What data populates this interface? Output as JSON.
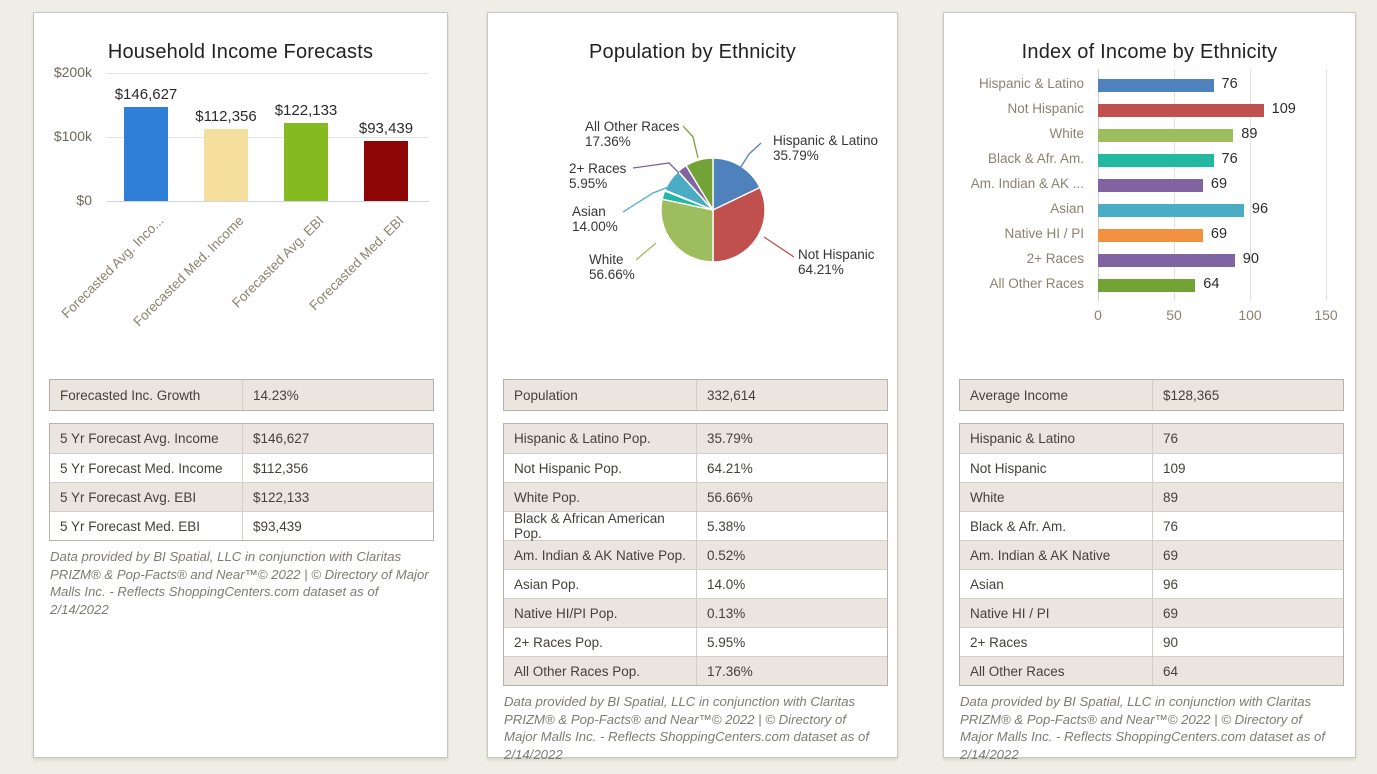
{
  "footnote": "Data provided by BI Spatial, LLC in conjunction with Claritas PRIZM® & Pop-Facts® and Near™© 2022 | © Directory of Major Malls Inc. - Reflects ShoppingCenters.com dataset as of 2/14/2022",
  "colors": {
    "page_bg": "#f0ede6",
    "panel_bg": "#ffffff",
    "table_shade": "#eae6df",
    "axis_label": "#8b8270",
    "value_label": "#2b2b2b"
  },
  "panels": [
    {
      "title": "Household Income Forecasts",
      "summary_rows": [
        [
          "Forecasted Inc. Growth",
          "14.23%"
        ]
      ],
      "detail_rows": [
        [
          "5 Yr Forecast Avg. Income",
          "$146,627"
        ],
        [
          "5 Yr Forecast Med. Income",
          "$112,356"
        ],
        [
          "5 Yr Forecast Avg. EBI",
          "$122,133"
        ],
        [
          "5 Yr Forecast Med. EBI",
          "$93,439"
        ]
      ]
    },
    {
      "title": "Population by Ethnicity",
      "summary_rows": [
        [
          "Population",
          "332,614"
        ]
      ],
      "detail_rows": [
        [
          "Hispanic & Latino Pop.",
          "35.79%"
        ],
        [
          "Not Hispanic Pop.",
          "64.21%"
        ],
        [
          "White Pop.",
          "56.66%"
        ],
        [
          "Black & African American Pop.",
          "5.38%"
        ],
        [
          "Am. Indian & AK Native Pop.",
          "0.52%"
        ],
        [
          "Asian Pop.",
          "14.0%"
        ],
        [
          "Native HI/PI Pop.",
          "0.13%"
        ],
        [
          "2+ Races Pop.",
          "5.95%"
        ],
        [
          "All Other Races Pop.",
          "17.36%"
        ]
      ]
    },
    {
      "title": "Index of Income by Ethnicity",
      "summary_rows": [
        [
          "Average Income",
          "$128,365"
        ]
      ],
      "detail_rows": [
        [
          "Hispanic & Latino",
          "76"
        ],
        [
          "Not Hispanic",
          "109"
        ],
        [
          "White",
          "89"
        ],
        [
          "Black & Afr. Am.",
          "76"
        ],
        [
          "Am. Indian & AK Native",
          "69"
        ],
        [
          "Asian",
          "96"
        ],
        [
          "Native HI / PI",
          "69"
        ],
        [
          "2+ Races",
          "90"
        ],
        [
          "All Other Races",
          "64"
        ]
      ]
    }
  ],
  "chart_data": [
    {
      "type": "bar",
      "title": "Household Income Forecasts",
      "categories": [
        "Forecasted Avg. Inco...",
        "Forecasted Med. Income",
        "Forecasted Avg. EBI",
        "Forecasted Med. EBI"
      ],
      "values": [
        146627,
        112356,
        122133,
        93439
      ],
      "value_labels": [
        "$146,627",
        "$112,356",
        "$122,133",
        "$93,439"
      ],
      "bar_colors": [
        "#2f7ed8",
        "#f5df9e",
        "#85bb21",
        "#8e0505"
      ],
      "ylim": [
        0,
        200000
      ],
      "yticks": [
        {
          "label": "$0",
          "value": 0
        },
        {
          "label": "$100k",
          "value": 100000
        },
        {
          "label": "$200k",
          "value": 200000
        }
      ],
      "grid": true
    },
    {
      "type": "pie",
      "title": "Population by Ethnicity",
      "total": 200,
      "slices": [
        {
          "label": "Hispanic & Latino",
          "value": 35.79,
          "display": "35.79%",
          "color": "#4f81bd",
          "labeled": true
        },
        {
          "label": "Not Hispanic",
          "value": 64.21,
          "display": "64.21%",
          "color": "#c0504d",
          "labeled": true
        },
        {
          "label": "White",
          "value": 56.66,
          "display": "56.66%",
          "color": "#9dbd5e",
          "labeled": true
        },
        {
          "label": "Black & African American",
          "value": 5.38,
          "display": "5.38%",
          "color": "#23b8a1",
          "labeled": false
        },
        {
          "label": "Am. Indian & AK Native",
          "value": 0.52,
          "display": "0.52%",
          "color": "#b0c4de",
          "labeled": false
        },
        {
          "label": "Asian",
          "value": 14.0,
          "display": "14.00%",
          "color": "#4bacc6",
          "labeled": true
        },
        {
          "label": "Native HI/PI",
          "value": 0.13,
          "display": "0.13%",
          "color": "#f0923f",
          "labeled": false
        },
        {
          "label": "2+ Races",
          "value": 5.95,
          "display": "5.95%",
          "color": "#8064a2",
          "labeled": true
        },
        {
          "label": "All Other Races",
          "value": 17.36,
          "display": "17.36%",
          "color": "#73a337",
          "labeled": true
        }
      ]
    },
    {
      "type": "bar_horizontal",
      "title": "Index of Income by Ethnicity",
      "categories": [
        "Hispanic & Latino",
        "Not Hispanic",
        "White",
        "Black & Afr. Am.",
        "Am. Indian & AK ...",
        "Asian",
        "Native HI / PI",
        "2+ Races",
        "All Other Races"
      ],
      "values": [
        76,
        109,
        89,
        76,
        69,
        96,
        69,
        90,
        64
      ],
      "bar_colors": [
        "#4f81bd",
        "#c0504d",
        "#9dbd5e",
        "#23b8a1",
        "#8064a2",
        "#4bacc6",
        "#f0923f",
        "#8064a2",
        "#73a337"
      ],
      "xlim": [
        0,
        150
      ],
      "xticks": [
        0,
        50,
        100,
        150
      ],
      "grid": true
    }
  ]
}
